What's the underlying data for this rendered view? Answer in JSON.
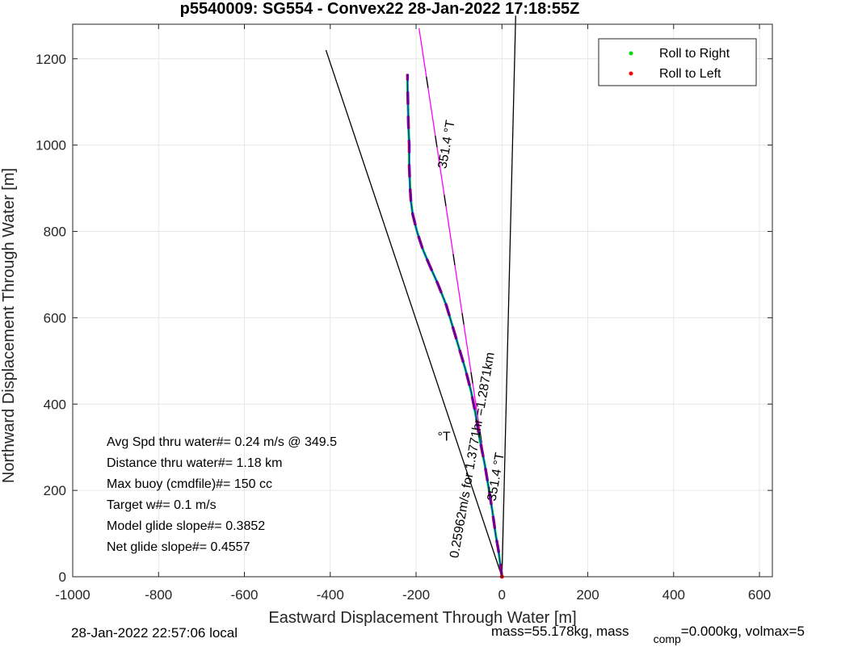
{
  "chart_data": {
    "type": "line",
    "title": "p5540009: SG554 - Convex22 28-Jan-2022 17:18:55Z",
    "xlabel": "Eastward Displacement Through Water [m]",
    "ylabel": "Northward Displacement Through Water [m]",
    "xlim": [
      -1000,
      630
    ],
    "ylim": [
      0,
      1280
    ],
    "xticks": [
      -1000,
      -800,
      -600,
      -400,
      -200,
      0,
      200,
      400,
      600
    ],
    "xtick_labels": [
      "-1000",
      "-800",
      "-600",
      "-400",
      "-200",
      "0",
      "200",
      "400",
      "600"
    ],
    "yticks": [
      0,
      200,
      400,
      600,
      800,
      1000,
      1200
    ],
    "ytick_labels": [
      "0",
      "200",
      "400",
      "600",
      "800",
      "1000",
      "1200"
    ],
    "grid": true,
    "legend": {
      "location": "top-right",
      "entries": [
        {
          "label": "Roll to Right",
          "color": "#00dd00"
        },
        {
          "label": "Roll to Left",
          "color": "#ff0000"
        }
      ]
    },
    "track": {
      "color": "#0000ff",
      "x": [
        0,
        -8,
        -15,
        -22,
        -30,
        -40,
        -52,
        -62,
        -72,
        -85,
        -100,
        -115,
        -130,
        -150,
        -168,
        -185,
        -198,
        -208,
        -212,
        -214,
        -216,
        -216,
        -218,
        -219,
        -220,
        -220
      ],
      "y": [
        0,
        60,
        100,
        150,
        200,
        260,
        320,
        380,
        430,
        480,
        530,
        580,
        630,
        680,
        720,
        760,
        800,
        840,
        870,
        900,
        950,
        1000,
        1050,
        1100,
        1140,
        1165
      ]
    },
    "series": [
      {
        "name": "heading_line",
        "color": "#ff00ff",
        "x": [
          0,
          -193
        ],
        "y": [
          0,
          1270
        ]
      },
      {
        "color": "#000000",
        "x": [
          0,
          -410
        ],
        "y": [
          0,
          1220
        ]
      },
      {
        "color": "#000000",
        "x": [
          0,
          32
        ],
        "y": [
          0,
          1300
        ]
      }
    ],
    "annotations": [
      {
        "text": "351.4  °T",
        "x": -120,
        "y": 1000,
        "rotation": -80
      },
      {
        "text": "0.25962m/s for 1.3771hr =1.2871km",
        "x": -60,
        "y": 280,
        "rotation": -80
      },
      {
        "text": "351.4  °T",
        "x": -5,
        "y": 230,
        "rotation": -80
      },
      {
        "text": "°T",
        "x": -135,
        "y": 315,
        "rotation": 0
      }
    ],
    "stats": [
      "Avg Spd thru water#=  0.24 m/s @ 349.5",
      "Distance thru water#=  1.18 km",
      "Max buoy (cmdfile)#= 150 cc",
      "Target w#= 0.1 m/s",
      "Model glide slope#= 0.3852",
      "Net glide slope#= 0.4557"
    ]
  },
  "footer": {
    "left": "28-Jan-2022 22:57:06 local",
    "right_prefix": "mass=55.178kg, mass",
    "right_sub": "comp",
    "right_suffix": "=0.000kg, volmax=5"
  }
}
